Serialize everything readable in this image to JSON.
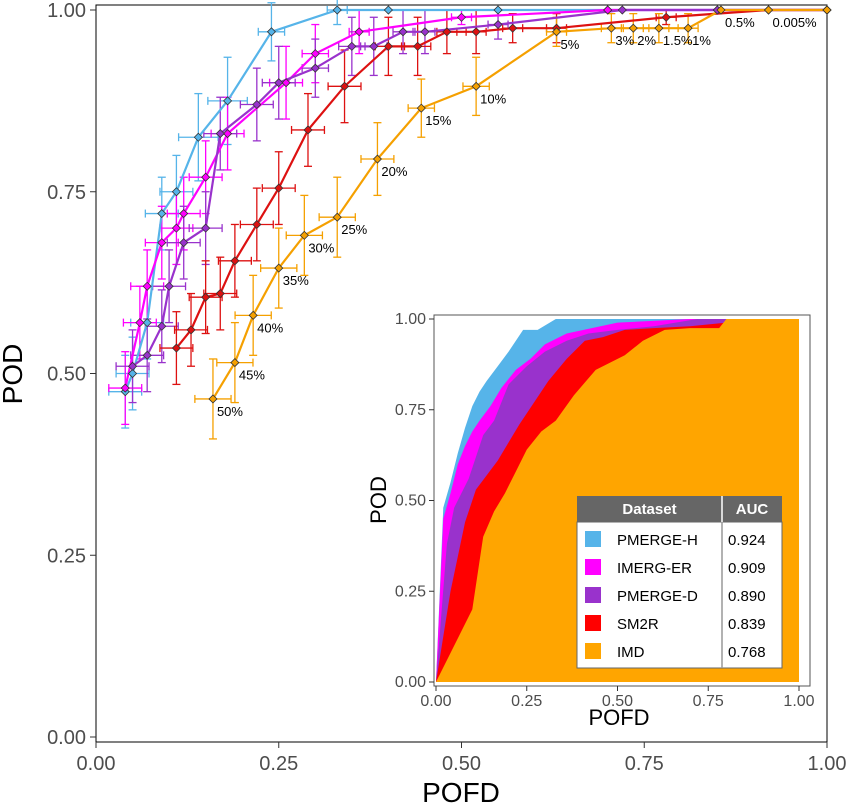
{
  "chart_data": [
    {
      "type": "line",
      "xlabel": "POFD",
      "ylabel": "POD",
      "xlim": [
        0,
        1
      ],
      "ylim": [
        0,
        1
      ],
      "xticks": [
        "0.00",
        "0.25",
        "0.50",
        "0.75",
        "1.00"
      ],
      "yticks": [
        "0.00",
        "0.25",
        "0.50",
        "0.75",
        "1.00"
      ],
      "grid": false,
      "series": [
        {
          "name": "PMERGE-H",
          "color": "#56B4E9",
          "x": [
            0.04,
            0.05,
            0.07,
            0.09,
            0.11,
            0.14,
            0.18,
            0.24,
            0.33,
            0.4,
            0.55,
            0.7,
            0.85,
            1.0
          ],
          "y": [
            0.475,
            0.5,
            0.57,
            0.72,
            0.75,
            0.825,
            0.875,
            0.97,
            1.0,
            1.0,
            1.0,
            1.0,
            1.0,
            1.0
          ],
          "err": [
            0.05,
            0.05,
            0.05,
            0.05,
            0.05,
            0.06,
            0.06,
            0.04,
            0.02,
            0.0,
            0.0,
            0.0,
            0.0,
            0.0
          ]
        },
        {
          "name": "IMERG-ER",
          "color": "#FF00FF",
          "x": [
            0.04,
            0.06,
            0.07,
            0.09,
            0.11,
            0.12,
            0.15,
            0.18,
            0.26,
            0.3,
            0.36,
            0.5,
            0.7,
            1.0
          ],
          "y": [
            0.48,
            0.57,
            0.62,
            0.68,
            0.7,
            0.72,
            0.77,
            0.83,
            0.9,
            0.94,
            0.97,
            0.99,
            1.0,
            1.0
          ],
          "err": [
            0.05,
            0.05,
            0.05,
            0.05,
            0.05,
            0.05,
            0.05,
            0.05,
            0.05,
            0.04,
            0.03,
            0.01,
            0.0,
            0.0
          ]
        },
        {
          "name": "PMERGE-D",
          "color": "#9932CC",
          "x": [
            0.05,
            0.07,
            0.09,
            0.1,
            0.12,
            0.15,
            0.17,
            0.22,
            0.25,
            0.3,
            0.35,
            0.38,
            0.42,
            0.45,
            0.55,
            0.72,
            0.85,
            1.0
          ],
          "y": [
            0.51,
            0.525,
            0.565,
            0.62,
            0.68,
            0.7,
            0.83,
            0.87,
            0.9,
            0.92,
            0.95,
            0.95,
            0.97,
            0.97,
            0.98,
            1.0,
            1.0,
            1.0
          ],
          "err": [
            0.05,
            0.05,
            0.05,
            0.05,
            0.05,
            0.05,
            0.05,
            0.05,
            0.05,
            0.04,
            0.04,
            0.04,
            0.03,
            0.03,
            0.02,
            0.0,
            0.0,
            0.0
          ]
        },
        {
          "name": "SM2R",
          "color": "#DD1111",
          "x": [
            0.11,
            0.13,
            0.15,
            0.17,
            0.19,
            0.22,
            0.25,
            0.29,
            0.34,
            0.4,
            0.44,
            0.48,
            0.52,
            0.57,
            0.63,
            0.78,
            0.92,
            1.0
          ],
          "y": [
            0.535,
            0.56,
            0.605,
            0.61,
            0.655,
            0.705,
            0.755,
            0.835,
            0.895,
            0.95,
            0.95,
            0.97,
            0.97,
            0.975,
            0.975,
            0.99,
            1.0,
            1.0
          ],
          "err": [
            0.05,
            0.05,
            0.05,
            0.05,
            0.05,
            0.05,
            0.05,
            0.05,
            0.05,
            0.04,
            0.04,
            0.03,
            0.03,
            0.02,
            0.02,
            0.01,
            0.0,
            0.0
          ]
        },
        {
          "name": "IMD",
          "color": "#F5A000",
          "x": [
            0.16,
            0.19,
            0.215,
            0.25,
            0.285,
            0.33,
            0.385,
            0.445,
            0.52,
            0.63,
            0.705,
            0.735,
            0.77,
            0.81,
            0.855,
            0.92,
            1.0
          ],
          "y": [
            0.465,
            0.515,
            0.58,
            0.645,
            0.69,
            0.715,
            0.795,
            0.865,
            0.895,
            0.97,
            0.975,
            0.975,
            0.975,
            0.975,
            1.0,
            1.0,
            1.0
          ],
          "err": [
            0.055,
            0.055,
            0.055,
            0.055,
            0.055,
            0.055,
            0.05,
            0.04,
            0.04,
            0.02,
            0.02,
            0.02,
            0.02,
            0.02,
            0.0,
            0.0,
            0.0
          ]
        }
      ],
      "annotations": [
        {
          "text": "50%",
          "x": 0.16,
          "y": 0.465
        },
        {
          "text": "45%",
          "x": 0.19,
          "y": 0.515
        },
        {
          "text": "40%",
          "x": 0.215,
          "y": 0.58
        },
        {
          "text": "35%",
          "x": 0.25,
          "y": 0.645
        },
        {
          "text": "30%",
          "x": 0.285,
          "y": 0.69
        },
        {
          "text": "25%",
          "x": 0.33,
          "y": 0.715
        },
        {
          "text": "20%",
          "x": 0.385,
          "y": 0.795
        },
        {
          "text": "15%",
          "x": 0.445,
          "y": 0.865
        },
        {
          "text": "10%",
          "x": 0.52,
          "y": 0.895
        },
        {
          "text": "5%",
          "x": 0.63,
          "y": 0.97
        },
        {
          "text": "3%",
          "x": 0.705,
          "y": 0.975
        },
        {
          "text": "2%",
          "x": 0.735,
          "y": 0.975
        },
        {
          "text": "1.5%",
          "x": 0.77,
          "y": 0.975
        },
        {
          "text": "1%",
          "x": 0.81,
          "y": 0.975
        },
        {
          "text": "0.5%",
          "x": 0.855,
          "y": 1.0
        },
        {
          "text": "0.005%",
          "x": 0.92,
          "y": 1.0
        }
      ]
    },
    {
      "type": "area",
      "xlabel": "POFD",
      "ylabel": "POD",
      "xlim": [
        0,
        1
      ],
      "ylim": [
        0,
        1
      ],
      "xticks": [
        "0.00",
        "0.25",
        "0.50",
        "0.75",
        "1.00"
      ],
      "yticks": [
        "0.00",
        "0.25",
        "0.50",
        "0.75",
        "1.00"
      ],
      "legend_position": "bottom-right",
      "table_headers": [
        "Dataset",
        "AUC"
      ],
      "series": [
        {
          "name": "PMERGE-H",
          "auc": "0.924",
          "color": "#56B4E9",
          "x": [
            0,
            0.02,
            0.04,
            0.06,
            0.08,
            0.1,
            0.12,
            0.14,
            0.17,
            0.2,
            0.24,
            0.28,
            0.33,
            0.4,
            1.0
          ],
          "y": [
            0,
            0.48,
            0.55,
            0.63,
            0.7,
            0.76,
            0.8,
            0.83,
            0.87,
            0.91,
            0.97,
            0.97,
            1.0,
            1.0,
            1.0
          ]
        },
        {
          "name": "IMERG-ER",
          "auc": "0.909",
          "color": "#FF00FF",
          "x": [
            0,
            0.02,
            0.04,
            0.06,
            0.08,
            0.1,
            0.12,
            0.15,
            0.18,
            0.22,
            0.26,
            0.3,
            0.36,
            0.5,
            0.7,
            1.0
          ],
          "y": [
            0,
            0.45,
            0.52,
            0.6,
            0.65,
            0.69,
            0.72,
            0.76,
            0.81,
            0.86,
            0.89,
            0.93,
            0.96,
            0.99,
            1.0,
            1.0
          ]
        },
        {
          "name": "PMERGE-D",
          "auc": "0.890",
          "color": "#9932CC",
          "x": [
            0,
            0.03,
            0.05,
            0.07,
            0.09,
            0.11,
            0.13,
            0.16,
            0.2,
            0.25,
            0.3,
            0.36,
            0.42,
            0.5,
            0.6,
            0.72,
            0.85,
            1.0
          ],
          "y": [
            0,
            0.38,
            0.48,
            0.52,
            0.56,
            0.62,
            0.68,
            0.72,
            0.82,
            0.87,
            0.91,
            0.94,
            0.96,
            0.97,
            0.98,
            1.0,
            1.0,
            1.0
          ],
          "y_note": ""
        },
        {
          "name": "SM2R",
          "auc": "0.839",
          "color": "#FF0000",
          "x": [
            0,
            0.04,
            0.08,
            0.11,
            0.14,
            0.17,
            0.2,
            0.23,
            0.27,
            0.31,
            0.36,
            0.41,
            0.46,
            0.52,
            0.6,
            0.7,
            0.8,
            0.92,
            1.0
          ],
          "y": [
            0,
            0.25,
            0.44,
            0.53,
            0.57,
            0.61,
            0.66,
            0.71,
            0.77,
            0.83,
            0.89,
            0.94,
            0.95,
            0.97,
            0.975,
            0.98,
            0.99,
            1.0,
            1.0
          ]
        },
        {
          "name": "IMD",
          "auc": "0.768",
          "color": "#FFA500",
          "x": [
            0,
            0.1,
            0.13,
            0.16,
            0.19,
            0.22,
            0.25,
            0.29,
            0.33,
            0.38,
            0.44,
            0.52,
            0.57,
            0.63,
            0.7,
            0.78,
            0.8,
            1.0
          ],
          "y": [
            0,
            0.2,
            0.4,
            0.47,
            0.52,
            0.58,
            0.64,
            0.69,
            0.72,
            0.79,
            0.86,
            0.9,
            0.94,
            0.97,
            0.975,
            0.975,
            1.0,
            1.0
          ]
        }
      ]
    }
  ]
}
